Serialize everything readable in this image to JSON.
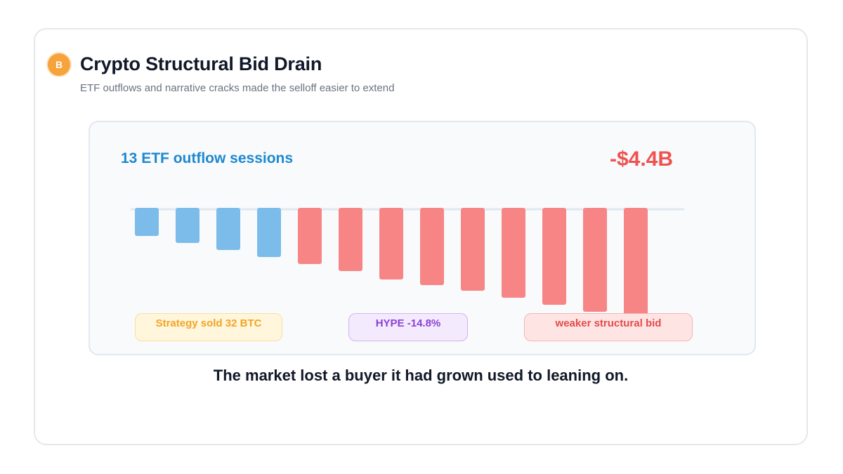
{
  "header": {
    "badge_letter": "B",
    "title": "Crypto Structural Bid Drain",
    "subtitle": "ETF outflows and narrative cracks made the selloff easier to extend"
  },
  "panel": {
    "sessions_label": "13 ETF outflow sessions",
    "total_label": "-$4.4B"
  },
  "annotations": {
    "strategy": "Strategy sold 32 BTC",
    "hype": "HYPE -14.8%",
    "bid": "weaker structural bid"
  },
  "caption": "The market lost a buyer it had grown used to leaning on.",
  "colors": {
    "blue_bar": "#7cbcea",
    "red_bar": "#f78585",
    "baseline": "#e2e8f0",
    "accent_blue": "#1e88cf",
    "accent_red": "#ef5350",
    "badge": "#f7a23b"
  },
  "chart_data": {
    "type": "bar",
    "title": "13 ETF outflow sessions",
    "xlabel": "",
    "ylabel": "",
    "ylim": [
      -15,
      0
    ],
    "values": [
      -4,
      -5,
      -6,
      -7,
      -8,
      -9,
      -10.2,
      -11,
      -11.8,
      -12.8,
      -13.8,
      -14.8,
      -15.5
    ],
    "series_colors": [
      "blue",
      "blue",
      "blue",
      "blue",
      "red",
      "red",
      "red",
      "red",
      "red",
      "red",
      "red",
      "red",
      "red"
    ],
    "grid": false,
    "legend": "none"
  }
}
